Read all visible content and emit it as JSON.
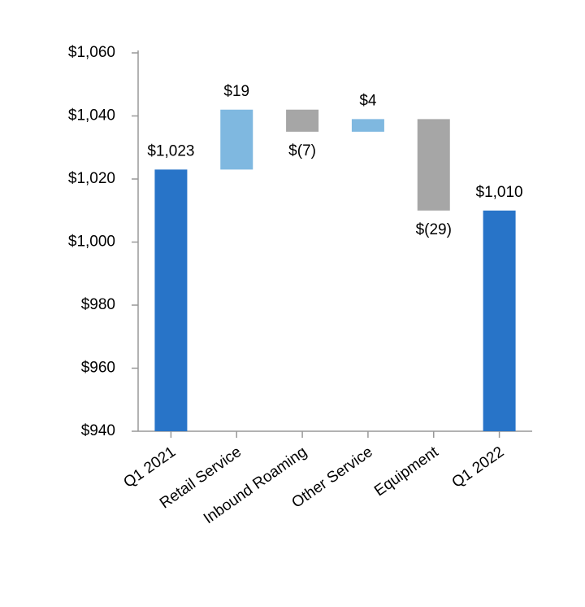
{
  "chart_data": {
    "type": "waterfall",
    "categories": [
      "Q1 2021",
      "Retail Service",
      "Inbound Roaming",
      "Other Service",
      "Equipment",
      "Q1 2022"
    ],
    "values": [
      1023,
      19,
      -7,
      4,
      -29,
      1010
    ],
    "value_labels": [
      "$1,023",
      "$19",
      "$(7)",
      "$4",
      "$(29)",
      "$1,010"
    ],
    "measures": [
      "total",
      "relative",
      "relative",
      "relative",
      "relative",
      "total"
    ],
    "colors": {
      "total": "#2874c8",
      "increase": "#7fb8e0",
      "decrease": "#a6a6a6"
    },
    "ylim": [
      940,
      1060
    ],
    "yticks": [
      {
        "value": 940,
        "label": "$940"
      },
      {
        "value": 960,
        "label": "$960"
      },
      {
        "value": 980,
        "label": "$980"
      },
      {
        "value": 1000,
        "label": "$1,000"
      },
      {
        "value": 1020,
        "label": "$1,020"
      },
      {
        "value": 1040,
        "label": "$1,040"
      },
      {
        "value": 1060,
        "label": "$1,060"
      }
    ],
    "grid": false
  }
}
